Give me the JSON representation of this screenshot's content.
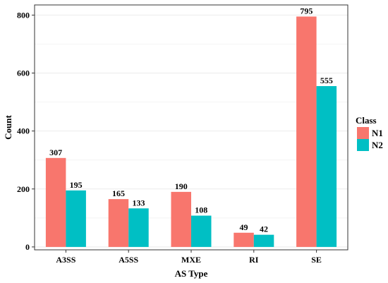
{
  "chart_data": {
    "type": "bar",
    "categories": [
      "A3SS",
      "A5SS",
      "MXE",
      "RI",
      "SE"
    ],
    "series": [
      {
        "name": "N1",
        "values": [
          307,
          165,
          190,
          49,
          795
        ],
        "color": "#f8766d"
      },
      {
        "name": "N2",
        "values": [
          195,
          133,
          108,
          42,
          555
        ],
        "color": "#00bfc4"
      }
    ],
    "xlabel": "AS Type",
    "ylabel": "Count",
    "ylim": [
      -10,
      835
    ],
    "yticks": [
      0,
      200,
      400,
      600,
      800
    ],
    "grid": true,
    "legend": {
      "title": "Class",
      "placement": "right"
    },
    "data_labels": true
  }
}
